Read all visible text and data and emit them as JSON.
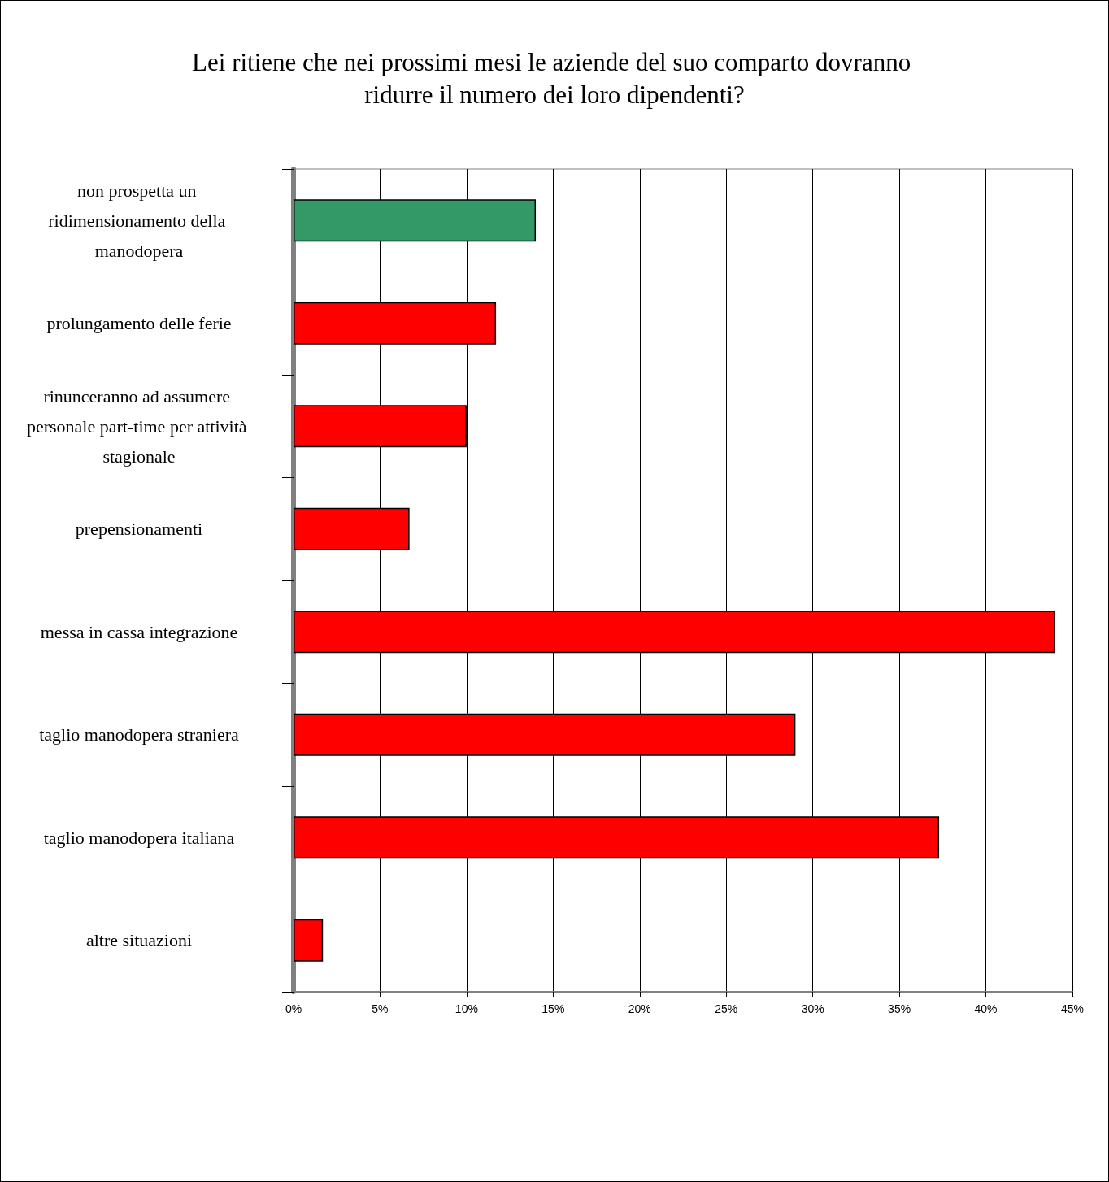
{
  "chart_data": {
    "type": "bar",
    "orientation": "horizontal",
    "title": "Lei ritiene che nei prossimi mesi le aziende del suo comparto dovranno ridurre il numero dei loro dipendenti?",
    "categories": [
      "non prospetta un ridimensionamento della manodopera",
      "prolungamento delle ferie",
      "rinunceranno ad assumere personale part-time per attività stagionale",
      "prepensionamenti",
      "messa in cassa integrazione",
      "taglio manodopera straniera",
      "taglio manodopera italiana",
      "altre situazioni"
    ],
    "values": [
      14.0,
      11.7,
      10.0,
      6.7,
      44.0,
      29.0,
      37.3,
      1.7
    ],
    "colors": [
      "#339966",
      "#ff0000",
      "#ff0000",
      "#ff0000",
      "#ff0000",
      "#ff0000",
      "#ff0000",
      "#ff0000"
    ],
    "xlim": [
      0,
      45
    ],
    "xticks": [
      {
        "value": 0,
        "label": "0%"
      },
      {
        "value": 5,
        "label": "5%"
      },
      {
        "value": 10,
        "label": "10%"
      },
      {
        "value": 15,
        "label": "15%"
      },
      {
        "value": 20,
        "label": "20%"
      },
      {
        "value": 25,
        "label": "25%"
      },
      {
        "value": 30,
        "label": "30%"
      },
      {
        "value": 35,
        "label": "35%"
      },
      {
        "value": 40,
        "label": "40%"
      },
      {
        "value": 45,
        "label": "45%"
      }
    ],
    "grid": "x"
  }
}
